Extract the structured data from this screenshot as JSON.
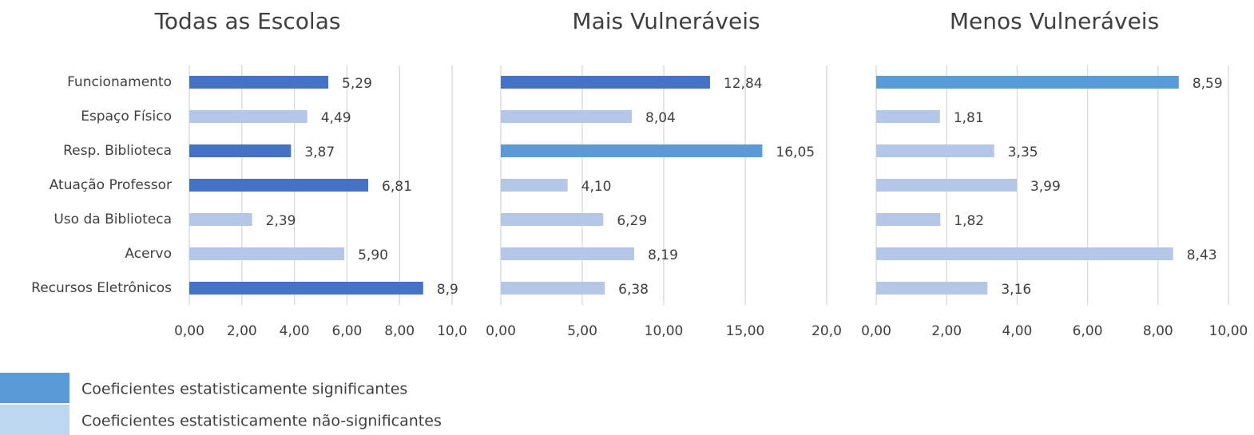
{
  "chart_data": [
    {
      "type": "barh",
      "title": "Todas as Escolas",
      "categories": [
        "Funcionamento",
        "Espaço Físico",
        "Resp. Biblioteca",
        "Atuação Professor",
        "Uso da Biblioteca",
        "Acervo",
        "Recursos Eletrônicos"
      ],
      "values": [
        5.29,
        4.49,
        3.87,
        6.81,
        2.39,
        5.9,
        8.9
      ],
      "value_labels": [
        "5,29",
        "4,49",
        "3,87",
        "6,81",
        "2,39",
        "5,90",
        "8,9"
      ],
      "colors": [
        "#4472c4",
        "#b4c7e7",
        "#4472c4",
        "#4472c4",
        "#b4c7e7",
        "#b4c7e7",
        "#4472c4"
      ],
      "xlim": [
        0,
        10
      ],
      "xticks": [
        {
          "value": 0,
          "label": "0,00"
        },
        {
          "value": 2,
          "label": "2,00"
        },
        {
          "value": 4,
          "label": "4,00"
        },
        {
          "value": 6,
          "label": "6,00"
        },
        {
          "value": 8,
          "label": "8,00"
        },
        {
          "value": 10,
          "label": "10,0"
        }
      ],
      "grid": true
    },
    {
      "type": "barh",
      "title": "Mais Vulneráveis",
      "values": [
        12.84,
        8.04,
        16.05,
        4.1,
        6.29,
        8.19,
        6.38
      ],
      "value_labels": [
        "12,84",
        "8,04",
        "16,05",
        "4,10",
        "6,29",
        "8,19",
        "6,38"
      ],
      "colors": [
        "#4472c4",
        "#b4c7e7",
        "#5b9bd5",
        "#b4c7e7",
        "#b4c7e7",
        "#b4c7e7",
        "#b4c7e7"
      ],
      "xlim": [
        0,
        20
      ],
      "xticks": [
        {
          "value": 0,
          "label": "0,00"
        },
        {
          "value": 5,
          "label": "5,00"
        },
        {
          "value": 10,
          "label": "10,00"
        },
        {
          "value": 15,
          "label": "15,00"
        },
        {
          "value": 20,
          "label": "20,0"
        }
      ],
      "grid": true
    },
    {
      "type": "barh",
      "title": "Menos Vulneráveis",
      "values": [
        8.59,
        1.81,
        3.35,
        3.99,
        1.82,
        8.43,
        3.16
      ],
      "value_labels": [
        "8,59",
        "1,81",
        "3,35",
        "3,99",
        "1,82",
        "8,43",
        "3,16"
      ],
      "colors": [
        "#5b9bd5",
        "#b4c7e7",
        "#b4c7e7",
        "#b4c7e7",
        "#b4c7e7",
        "#b4c7e7",
        "#b4c7e7"
      ],
      "xlim": [
        0,
        10
      ],
      "xticks": [
        {
          "value": 0,
          "label": "0,00"
        },
        {
          "value": 2,
          "label": "2,00"
        },
        {
          "value": 4,
          "label": "4,00"
        },
        {
          "value": 6,
          "label": "6,00"
        },
        {
          "value": 8,
          "label": "8,00"
        },
        {
          "value": 10,
          "label": "10,00"
        }
      ],
      "grid": true
    }
  ],
  "legend": [
    {
      "label": "Coeficientes estatisticamente significantes",
      "color": "#5b9bd5"
    },
    {
      "label": "Coeficientes estatisticamente não-significantes",
      "color": "#bdd7ee"
    }
  ]
}
